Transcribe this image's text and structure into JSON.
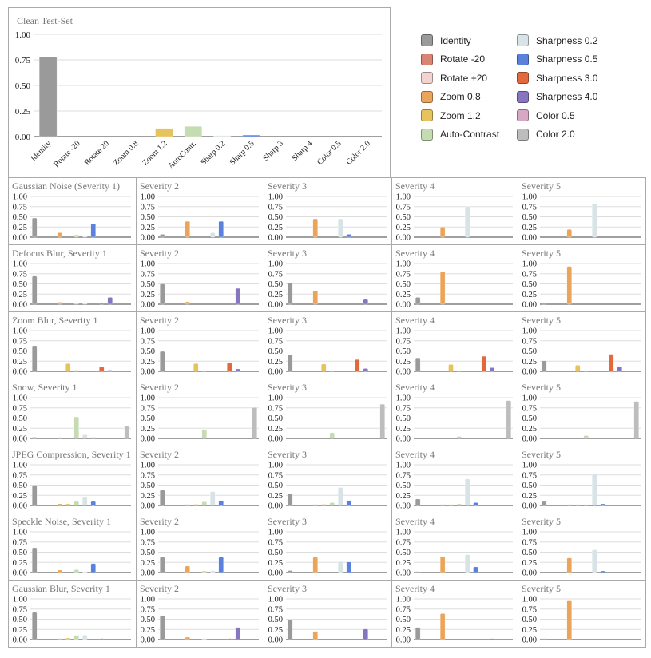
{
  "chart_data": {
    "type": "bar",
    "y_ticks": [
      "1.00",
      "0.75",
      "0.50",
      "0.25",
      "0.00"
    ],
    "ylim": [
      0,
      1
    ],
    "grid": true,
    "legend_placement": "top-right",
    "series_names": [
      "Identity",
      "Rotate -20",
      "Rotate +20",
      "Zoom 0.8",
      "Zoom 1.2",
      "Auto-Contrast",
      "Sharpness 0.2",
      "Sharpness 0.5",
      "Sharpness 3.0",
      "Sharpness 4.0",
      "Color 0.5",
      "Color 2.0"
    ],
    "series_colors": [
      "#9a9a9a",
      "#d98572",
      "#f2d3cf",
      "#eba55a",
      "#e6c35e",
      "#c5dcb3",
      "#d7e3e7",
      "#5a82dc",
      "#e2693c",
      "#8676c0",
      "#d8a8c2",
      "#bdbdbd"
    ],
    "clean": {
      "title": "Clean Test-Set",
      "categories": [
        "Identity",
        "Rotate -20",
        "Rotate 20",
        "Zoom 0.8",
        "Zoom 1.2",
        "AutoContr.",
        "Sharp 0.2",
        "Sharp 0.5",
        "Sharp 3",
        "Sharp 4",
        "Color 0.5",
        "Color 2.0"
      ],
      "values": [
        0.78,
        0,
        0,
        0,
        0.08,
        0.1,
        0.005,
        0.015,
        0,
        0,
        0,
        0
      ]
    },
    "panels": [
      {
        "row": "Gaussian Noise",
        "titles": [
          "Gaussian Noise (Severity 1)",
          "Severity 2",
          "Severity 3",
          "Severity 4",
          "Severity 5"
        ],
        "values": [
          [
            0.47,
            0,
            0,
            0.11,
            0,
            0.06,
            0.02,
            0.33,
            0,
            0,
            0,
            0
          ],
          [
            0.07,
            0,
            0,
            0.39,
            0,
            0,
            0.11,
            0.39,
            0,
            0,
            0,
            0
          ],
          [
            0,
            0,
            0,
            0.45,
            0,
            0,
            0.45,
            0.07,
            0,
            0,
            0,
            0
          ],
          [
            0,
            0,
            0,
            0.25,
            0,
            0,
            0.75,
            0,
            0,
            0,
            0,
            0
          ],
          [
            0,
            0,
            0,
            0.19,
            0,
            0,
            0.82,
            0,
            0,
            0,
            0,
            0
          ]
        ]
      },
      {
        "row": "Defocus Blur",
        "titles": [
          "Defocus Blur, Severity 1",
          "Severity 2",
          "Severity 3",
          "Severity 4",
          "Severity 5"
        ],
        "values": [
          [
            0.69,
            0,
            0,
            0.05,
            0,
            0.02,
            0.03,
            0,
            0.02,
            0.17,
            0,
            0
          ],
          [
            0.5,
            0,
            0,
            0.06,
            0,
            0,
            0,
            0,
            0,
            0.39,
            0,
            0
          ],
          [
            0.52,
            0,
            0,
            0.33,
            0,
            0,
            0,
            0,
            0,
            0.12,
            0,
            0
          ],
          [
            0.17,
            0,
            0,
            0.8,
            0,
            0,
            0,
            0,
            0,
            0,
            0,
            0
          ],
          [
            0.04,
            0,
            0,
            0.93,
            0,
            0,
            0,
            0,
            0,
            0,
            0,
            0
          ]
        ]
      },
      {
        "row": "Zoom Blur",
        "titles": [
          "Zoom Blur, Severity 1",
          "Severity 2",
          "Severity 3",
          "Severity 4",
          "Severity 5"
        ],
        "values": [
          [
            0.63,
            0,
            0,
            0,
            0.19,
            0.03,
            0,
            0,
            0.11,
            0.03,
            0,
            0
          ],
          [
            0.49,
            0,
            0,
            0,
            0.19,
            0.01,
            0,
            0,
            0.21,
            0.06,
            0,
            0
          ],
          [
            0.41,
            0,
            0,
            0,
            0.18,
            0.01,
            0,
            0,
            0.29,
            0.07,
            0,
            0
          ],
          [
            0.33,
            0,
            0,
            0,
            0.17,
            0.01,
            0,
            0,
            0.37,
            0.09,
            0,
            0
          ],
          [
            0.26,
            0,
            0,
            0,
            0.15,
            0.01,
            0,
            0,
            0.42,
            0.12,
            0,
            0
          ]
        ]
      },
      {
        "row": "Snow",
        "titles": [
          "Snow, Severity 1",
          "Severity 2",
          "Severity 3",
          "Severity 4",
          "Severity 5"
        ],
        "values": [
          [
            0.03,
            0,
            0,
            0.01,
            0,
            0.53,
            0.09,
            0.02,
            0,
            0,
            0,
            0.3
          ],
          [
            0,
            0,
            0,
            0,
            0,
            0.22,
            0,
            0,
            0,
            0,
            0,
            0.76
          ],
          [
            0,
            0,
            0,
            0,
            0,
            0.14,
            0,
            0,
            0,
            0,
            0,
            0.84
          ],
          [
            0,
            0,
            0,
            0,
            0,
            0.05,
            0,
            0,
            0,
            0,
            0,
            0.93
          ],
          [
            0,
            0,
            0,
            0,
            0,
            0.07,
            0,
            0,
            0,
            0,
            0,
            0.91
          ]
        ]
      },
      {
        "row": "JPEG Compression",
        "titles": [
          "JPEG Compression, Severity 1",
          "Severity 2",
          "Severity 3",
          "Severity 4",
          "Severity 5"
        ],
        "values": [
          [
            0.5,
            0,
            0,
            0.04,
            0.04,
            0.1,
            0.2,
            0.1,
            0,
            0,
            0,
            0
          ],
          [
            0.38,
            0,
            0,
            0.02,
            0.03,
            0.09,
            0.34,
            0.12,
            0,
            0,
            0,
            0
          ],
          [
            0.29,
            0,
            0,
            0.02,
            0.03,
            0.07,
            0.44,
            0.12,
            0,
            0,
            0,
            0
          ],
          [
            0.16,
            0,
            0,
            0.02,
            0.02,
            0.04,
            0.65,
            0.07,
            0,
            0,
            0,
            0
          ],
          [
            0.1,
            0,
            0,
            0.01,
            0.01,
            0.02,
            0.78,
            0.04,
            0,
            0,
            0,
            0
          ]
        ]
      },
      {
        "row": "Speckle Noise",
        "titles": [
          "Speckle Noise, Severity 1",
          "Severity 2",
          "Severity 3",
          "Severity 4",
          "Severity 5"
        ],
        "values": [
          [
            0.61,
            0,
            0,
            0.06,
            0,
            0.07,
            0.02,
            0.22,
            0,
            0,
            0,
            0
          ],
          [
            0.38,
            0,
            0,
            0.16,
            0,
            0.04,
            0.04,
            0.38,
            0,
            0,
            0,
            0
          ],
          [
            0.05,
            0,
            0,
            0.38,
            0,
            0,
            0.27,
            0.26,
            0,
            0,
            0,
            0
          ],
          [
            0.01,
            0,
            0,
            0.39,
            0,
            0,
            0.44,
            0.14,
            0,
            0,
            0,
            0
          ],
          [
            0,
            0,
            0,
            0.36,
            0,
            0,
            0.56,
            0.04,
            0,
            0,
            0,
            0
          ]
        ]
      },
      {
        "row": "Gaussian Blur",
        "titles": [
          "Gaussian Blur, Severity 1",
          "Severity 2",
          "Severity 3",
          "Severity 4",
          "Severity 5"
        ],
        "values": [
          [
            0.67,
            0,
            0,
            0.01,
            0.04,
            0.1,
            0.11,
            0,
            0.02,
            0,
            0,
            0
          ],
          [
            0.59,
            0,
            0,
            0.06,
            0,
            0.01,
            0,
            0,
            0.01,
            0.3,
            0,
            0
          ],
          [
            0.49,
            0,
            0,
            0.2,
            0,
            0,
            0,
            0,
            0,
            0.26,
            0,
            0
          ],
          [
            0.3,
            0,
            0,
            0.64,
            0,
            0,
            0,
            0,
            0,
            0.02,
            0,
            0
          ],
          [
            0.01,
            0,
            0,
            0.97,
            0,
            0,
            0,
            0,
            0,
            0,
            0,
            0
          ]
        ]
      }
    ]
  }
}
